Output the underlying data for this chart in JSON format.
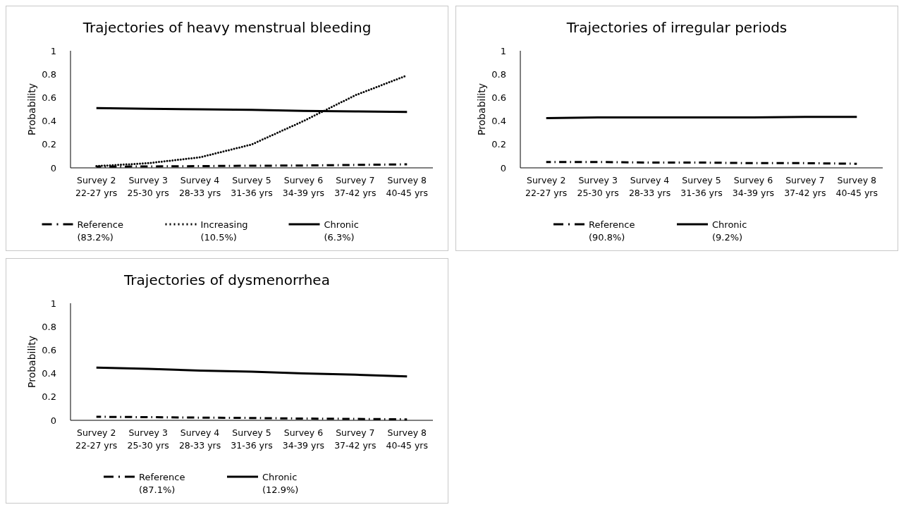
{
  "chart_data": [
    {
      "type": "line",
      "title": "Trajectories of heavy menstrual bleeding",
      "ylabel": "Probability",
      "categories": [
        "Survey 2\n22-27 yrs",
        "Survey 3\n25-30 yrs",
        "Survey 4\n28-33 yrs",
        "Survey 5\n31-36 yrs",
        "Survey 6\n34-39 yrs",
        "Survey 7\n37-42 yrs",
        "Survey 8\n40-45 yrs"
      ],
      "ylim": [
        0,
        1
      ],
      "yticks": [
        0,
        0.2,
        0.4,
        0.6,
        0.8,
        1
      ],
      "legend": "bottom",
      "marker": "none",
      "series": [
        {
          "name": "Reference (83.2%)",
          "color": "#000000",
          "line_style": "dashed",
          "values": [
            0.01,
            0.012,
            0.015,
            0.018,
            0.02,
            0.025,
            0.03
          ]
        },
        {
          "name": "Increasing (10.5%)",
          "color": "#000000",
          "line_style": "dotted",
          "values": [
            0.015,
            0.04,
            0.09,
            0.2,
            0.4,
            0.62,
            0.79
          ]
        },
        {
          "name": "Chronic (6.3%)",
          "color": "#000000",
          "line_style": "solid",
          "values": [
            0.51,
            0.505,
            0.5,
            0.495,
            0.487,
            0.482,
            0.478
          ]
        }
      ]
    },
    {
      "type": "line",
      "title": "Trajectories of irregular periods",
      "ylabel": "Probability",
      "categories": [
        "Survey 2\n22-27 yrs",
        "Survey 3\n25-30 yrs",
        "Survey 4\n28-33 yrs",
        "Survey 5\n31-36 yrs",
        "Survey 6\n34-39 yrs",
        "Survey 7\n37-42 yrs",
        "Survey 8\n40-45 yrs"
      ],
      "ylim": [
        0,
        1
      ],
      "yticks": [
        0,
        0.2,
        0.4,
        0.6,
        0.8,
        1
      ],
      "legend": "bottom",
      "marker": "none",
      "series": [
        {
          "name": "Reference (90.8%)",
          "color": "#000000",
          "line_style": "dashed",
          "values": [
            0.05,
            0.05,
            0.045,
            0.045,
            0.04,
            0.04,
            0.035
          ]
        },
        {
          "name": "Chronic (9.2%)",
          "color": "#000000",
          "line_style": "solid",
          "values": [
            0.425,
            0.43,
            0.43,
            0.43,
            0.43,
            0.435,
            0.435
          ]
        }
      ]
    },
    {
      "type": "line",
      "title": "Trajectories of dysmenorrhea",
      "ylabel": "Probability",
      "categories": [
        "Survey 2\n22-27 yrs",
        "Survey 3\n25-30 yrs",
        "Survey 4\n28-33 yrs",
        "Survey 5\n31-36 yrs",
        "Survey 6\n34-39 yrs",
        "Survey 7\n37-42 yrs",
        "Survey 8\n40-45 yrs"
      ],
      "ylim": [
        0,
        1
      ],
      "yticks": [
        0,
        0.2,
        0.4,
        0.6,
        0.8,
        1
      ],
      "legend": "bottom",
      "marker": "none",
      "series": [
        {
          "name": "Reference (87.1%)",
          "color": "#000000",
          "line_style": "dashed",
          "values": [
            0.03,
            0.027,
            0.023,
            0.02,
            0.015,
            0.012,
            0.008
          ]
        },
        {
          "name": "Chronic (12.9%)",
          "color": "#000000",
          "line_style": "solid",
          "values": [
            0.45,
            0.44,
            0.425,
            0.415,
            0.4,
            0.39,
            0.375
          ]
        }
      ]
    }
  ]
}
